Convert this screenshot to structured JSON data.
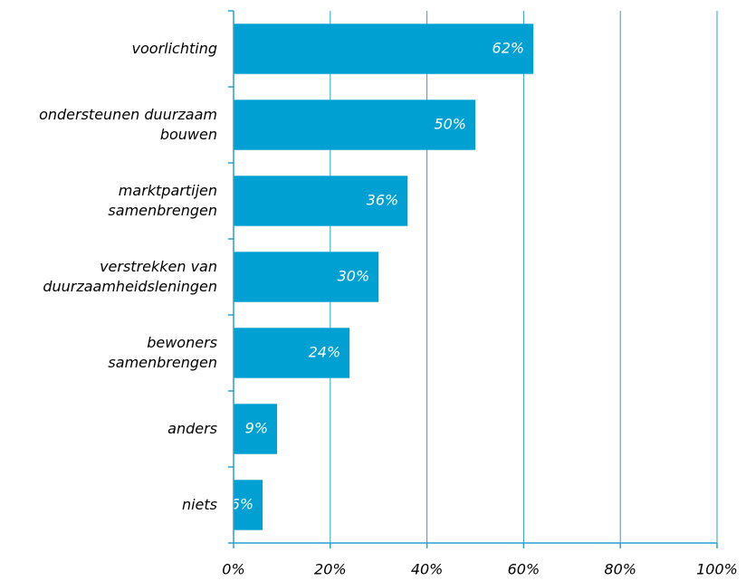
{
  "chart_data": {
    "type": "barh",
    "categories": [
      "voorlichting",
      "ondersteunen duurzaam\nbouwen",
      "marktpartijen\nsamenbrengen",
      "verstrekken van\nduurzaamheidsleningen",
      "bewoners\nsamenbrengen",
      "anders",
      "niets"
    ],
    "values": [
      62,
      50,
      36,
      30,
      24,
      9,
      6
    ],
    "value_labels": [
      "62%",
      "50%",
      "36%",
      "30%",
      "24%",
      "9%",
      "6%"
    ],
    "color": "#00a0d2",
    "xlim": [
      0,
      100
    ],
    "xticks": [
      {
        "value": 0,
        "label": "0%"
      },
      {
        "value": 20,
        "label": "20%"
      },
      {
        "value": 40,
        "label": "40%"
      },
      {
        "value": 60,
        "label": "60%"
      },
      {
        "value": 80,
        "label": "80%"
      },
      {
        "value": 100,
        "label": "100%"
      }
    ],
    "grid": true
  }
}
